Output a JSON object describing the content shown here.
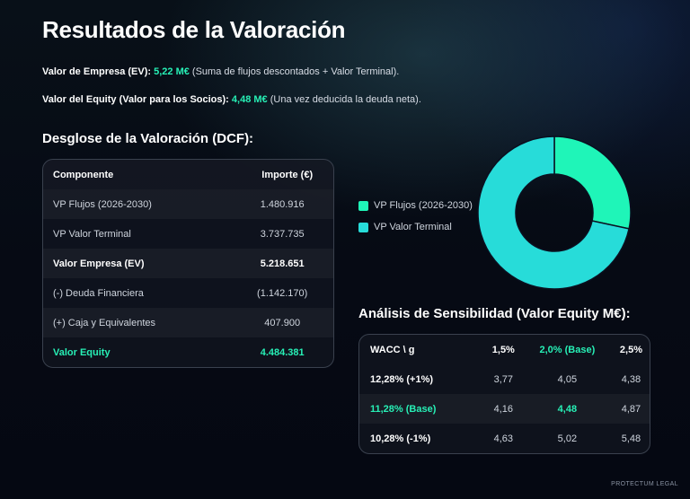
{
  "title": "Resultados de la Valoración",
  "summary": {
    "ev_label": "Valor de Empresa (EV):",
    "ev_value": "5,22 M€",
    "ev_note": "(Suma de flujos descontados + Valor Terminal).",
    "equity_label": "Valor del Equity (Valor para los Socios):",
    "equity_value": "4,48 M€",
    "equity_note": "(Una vez deducida la deuda neta)."
  },
  "dcf": {
    "title": "Desglose de la Valoración (DCF):",
    "headers": [
      "Componente",
      "Importe (€)"
    ],
    "rows": [
      [
        "VP Flujos (2026-2030)",
        "1.480.916"
      ],
      [
        "VP Valor Terminal",
        "3.737.735"
      ],
      [
        "Valor Empresa (EV)",
        "5.218.651"
      ],
      [
        "(-) Deuda Financiera",
        "(1.142.170)"
      ],
      [
        "(+) Caja y Equivalentes",
        "407.900"
      ],
      [
        "Valor Equity",
        "4.484.381"
      ]
    ]
  },
  "chart_data": {
    "type": "pie",
    "donut": true,
    "legend_position": "left",
    "labels": [
      "VP Flujos (2026-2030)",
      "VP Valor Terminal"
    ],
    "values": [
      1480916,
      3737735
    ],
    "colors": [
      "#1ff5b8",
      "#27dcd9"
    ]
  },
  "sensitivity": {
    "title": "Análisis de Sensibilidad (Valor Equity M€):",
    "headers": [
      "WACC \\ g",
      "1,5%",
      "2,0% (Base)",
      "2,5%"
    ],
    "rows": [
      [
        "12,28% (+1%)",
        "3,77",
        "4,05",
        "4,38"
      ],
      [
        "11,28% (Base)",
        "4,16",
        "4,48",
        "4,87"
      ],
      [
        "10,28% (-1%)",
        "4,63",
        "5,02",
        "5,48"
      ]
    ]
  },
  "footer": "PROTECTUM LEGAL",
  "colors": {
    "accent": "#27f0b6",
    "background": "#060a14"
  }
}
